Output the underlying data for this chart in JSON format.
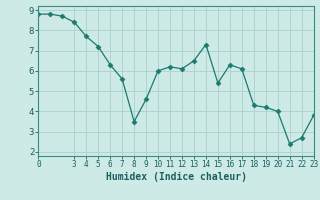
{
  "x": [
    0,
    1,
    2,
    3,
    4,
    5,
    6,
    7,
    8,
    9,
    10,
    11,
    12,
    13,
    14,
    15,
    16,
    17,
    18,
    19,
    20,
    21,
    22,
    23
  ],
  "y": [
    8.8,
    8.8,
    8.7,
    8.4,
    7.7,
    7.2,
    6.3,
    5.6,
    3.5,
    4.6,
    6.0,
    6.2,
    6.1,
    6.5,
    7.3,
    5.4,
    6.3,
    6.1,
    4.3,
    4.2,
    4.0,
    2.4,
    2.7,
    3.8
  ],
  "line_color": "#1a7a6e",
  "marker": "D",
  "marker_size": 2.5,
  "bg_color": "#ceeae7",
  "grid_color": "#b0d4d0",
  "xlabel": "Humidex (Indice chaleur)",
  "xlim": [
    0,
    23
  ],
  "ylim": [
    1.8,
    9.2
  ],
  "yticks": [
    2,
    3,
    4,
    5,
    6,
    7,
    8,
    9
  ],
  "xticks": [
    0,
    3,
    4,
    5,
    6,
    7,
    8,
    9,
    10,
    11,
    12,
    13,
    14,
    15,
    16,
    17,
    18,
    19,
    20,
    21,
    22,
    23
  ],
  "axis_color": "#3a8a80",
  "font_color": "#1a6060",
  "xlabel_fontsize": 7,
  "tick_fontsize": 5.5,
  "ytick_fontsize": 6.5
}
